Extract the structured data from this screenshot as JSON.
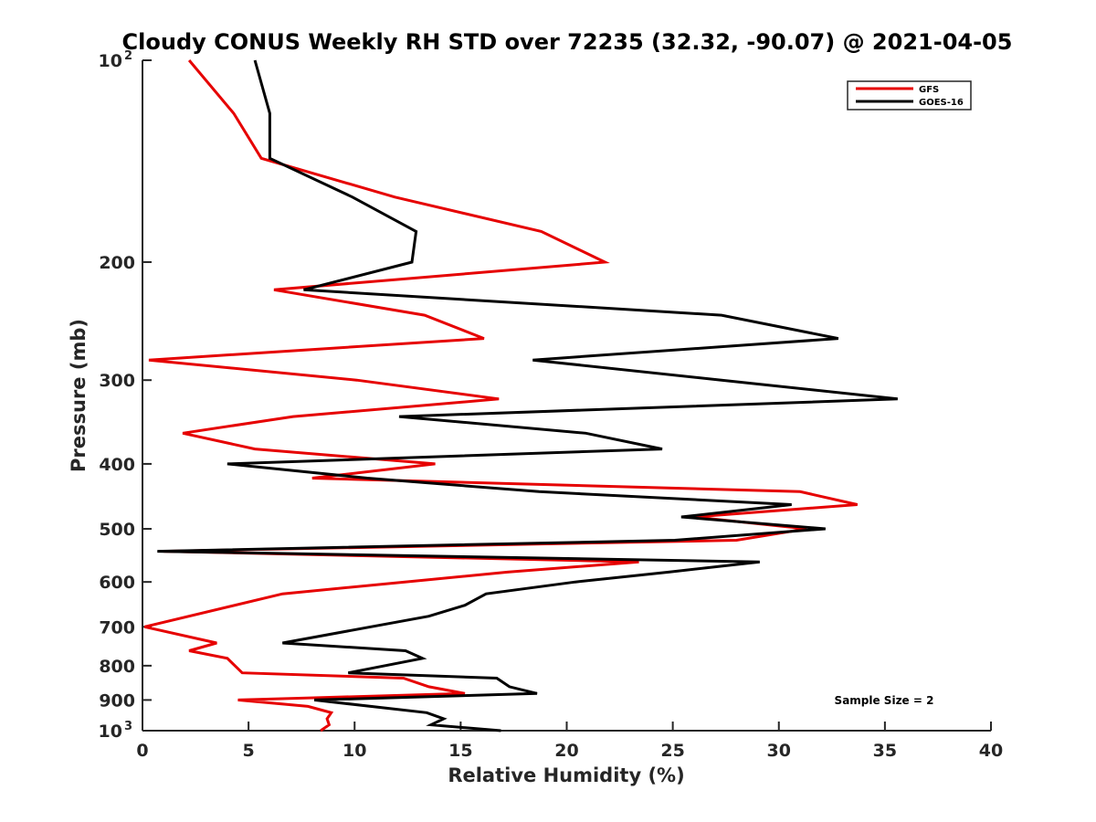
{
  "chart_data": {
    "type": "line",
    "title": "Cloudy CONUS Weekly RH STD over 72235 (32.32, -90.07) @ 2021-04-05",
    "xlabel": "Relative Humidity (%)",
    "ylabel": "Pressure (mb)",
    "xlim": [
      0,
      40
    ],
    "ylim": [
      100,
      1000
    ],
    "yscale": "log",
    "yreversed": true,
    "grid": false,
    "x_ticks": [
      "0",
      "5",
      "10",
      "15",
      "20",
      "25",
      "30",
      "35",
      "40"
    ],
    "y_ticks": [
      {
        "value": 100,
        "label": "10",
        "sup": "2"
      },
      {
        "value": 200,
        "label": "200",
        "sup": ""
      },
      {
        "value": 300,
        "label": "300",
        "sup": ""
      },
      {
        "value": 400,
        "label": "400",
        "sup": ""
      },
      {
        "value": 500,
        "label": "500",
        "sup": ""
      },
      {
        "value": 600,
        "label": "600",
        "sup": ""
      },
      {
        "value": 700,
        "label": "700",
        "sup": ""
      },
      {
        "value": 800,
        "label": "800",
        "sup": ""
      },
      {
        "value": 900,
        "label": "900",
        "sup": ""
      },
      {
        "value": 1000,
        "label": "10",
        "sup": "3"
      }
    ],
    "legend_position": "top-right",
    "annotation": "Sample Size = 2",
    "series": [
      {
        "name": "GFS",
        "color": "#e60000",
        "points": [
          [
            2.2,
            100
          ],
          [
            4.3,
            120
          ],
          [
            5.6,
            140
          ],
          [
            11.9,
            160
          ],
          [
            18.8,
            180
          ],
          [
            21.8,
            200
          ],
          [
            6.2,
            220
          ],
          [
            13.3,
            240
          ],
          [
            16.1,
            260
          ],
          [
            0.3,
            280
          ],
          [
            10.1,
            300
          ],
          [
            16.8,
            320
          ],
          [
            7.1,
            340
          ],
          [
            1.9,
            360
          ],
          [
            5.3,
            380
          ],
          [
            13.8,
            400
          ],
          [
            8.0,
            420
          ],
          [
            31.0,
            440
          ],
          [
            33.7,
            460
          ],
          [
            26.0,
            480
          ],
          [
            31.3,
            500
          ],
          [
            28.0,
            520
          ],
          [
            1.0,
            540
          ],
          [
            23.4,
            560
          ],
          [
            17.2,
            580
          ],
          [
            6.6,
            625
          ],
          [
            0.1,
            700
          ],
          [
            3.5,
            740
          ],
          [
            2.2,
            760
          ],
          [
            4.0,
            780
          ],
          [
            4.7,
            820
          ],
          [
            12.3,
            835
          ],
          [
            13.5,
            860
          ],
          [
            15.2,
            880
          ],
          [
            4.5,
            900
          ],
          [
            7.8,
            920
          ],
          [
            8.9,
            940
          ],
          [
            8.7,
            960
          ],
          [
            8.8,
            980
          ],
          [
            8.4,
            1000
          ]
        ]
      },
      {
        "name": "GOES-16",
        "color": "#000000",
        "points": [
          [
            5.3,
            100
          ],
          [
            6.0,
            120
          ],
          [
            6.0,
            140
          ],
          [
            9.9,
            160
          ],
          [
            12.9,
            180
          ],
          [
            12.7,
            200
          ],
          [
            7.6,
            220
          ],
          [
            27.3,
            240
          ],
          [
            32.8,
            260
          ],
          [
            18.4,
            280
          ],
          [
            27.3,
            300
          ],
          [
            35.6,
            320
          ],
          [
            12.1,
            340
          ],
          [
            20.9,
            360
          ],
          [
            24.5,
            380
          ],
          [
            4.0,
            400
          ],
          [
            10.6,
            420
          ],
          [
            18.7,
            440
          ],
          [
            30.6,
            460
          ],
          [
            25.4,
            480
          ],
          [
            32.2,
            500
          ],
          [
            25.1,
            520
          ],
          [
            0.7,
            540
          ],
          [
            29.1,
            560
          ],
          [
            24.8,
            580
          ],
          [
            20.4,
            600
          ],
          [
            16.2,
            625
          ],
          [
            15.2,
            650
          ],
          [
            13.5,
            675
          ],
          [
            6.6,
            740
          ],
          [
            12.4,
            760
          ],
          [
            13.2,
            780
          ],
          [
            9.7,
            820
          ],
          [
            16.7,
            835
          ],
          [
            17.3,
            860
          ],
          [
            18.6,
            880
          ],
          [
            8.1,
            900
          ],
          [
            13.4,
            940
          ],
          [
            14.2,
            960
          ],
          [
            13.6,
            980
          ],
          [
            16.9,
            1000
          ]
        ]
      }
    ]
  }
}
